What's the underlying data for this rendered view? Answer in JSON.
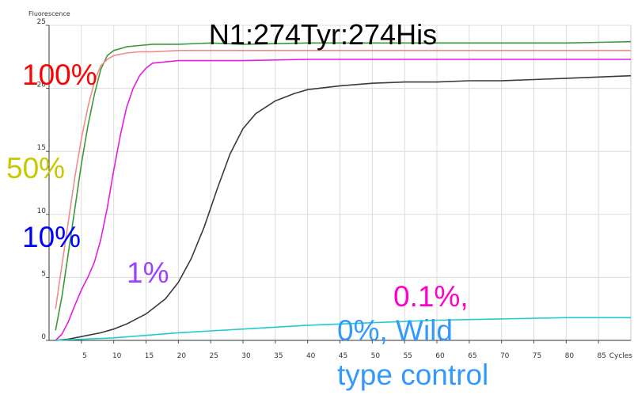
{
  "chart_data": {
    "type": "line",
    "title": "N1:274Tyr:274His",
    "ylabel": "Fluorescence",
    "xlabel": "Cycles",
    "xlim": [
      0,
      90
    ],
    "ylim": [
      0,
      25
    ],
    "x_ticks": [
      5,
      10,
      15,
      20,
      25,
      30,
      35,
      40,
      45,
      50,
      55,
      60,
      65,
      70,
      75,
      80,
      85
    ],
    "y_ticks": [
      0,
      5,
      10,
      15,
      20,
      25
    ],
    "grid": true,
    "series": [
      {
        "color": "#3a9a3a",
        "x": [
          1,
          2,
          3,
          4,
          5,
          6,
          7,
          8,
          9,
          10,
          12,
          14,
          16,
          20,
          25,
          30,
          40,
          50,
          60,
          70,
          80,
          90
        ],
        "y": [
          0.8,
          3.5,
          7.0,
          10.5,
          14.0,
          17.0,
          19.5,
          21.5,
          22.6,
          23.0,
          23.3,
          23.4,
          23.5,
          23.5,
          23.6,
          23.5,
          23.6,
          23.6,
          23.6,
          23.6,
          23.6,
          23.7
        ]
      },
      {
        "color": "#f08c8c",
        "x": [
          1,
          2,
          3,
          4,
          5,
          6,
          7,
          8,
          9,
          10,
          12,
          14,
          16,
          20,
          25,
          30,
          40,
          50,
          60,
          70,
          80,
          90
        ],
        "y": [
          2.5,
          6.0,
          9.5,
          13.0,
          16.0,
          18.5,
          20.5,
          21.8,
          22.3,
          22.6,
          22.8,
          22.9,
          22.9,
          23.0,
          23.0,
          23.0,
          23.0,
          23.0,
          23.0,
          23.0,
          23.0,
          23.0
        ]
      },
      {
        "color": "#e21ee2",
        "x": [
          1,
          2,
          3,
          4,
          5,
          6,
          7,
          8,
          9,
          10,
          11,
          12,
          13,
          14,
          15,
          16,
          18,
          20,
          25,
          30,
          40,
          50,
          60,
          70,
          80,
          90
        ],
        "y": [
          0.0,
          0.5,
          1.5,
          2.8,
          4.0,
          5.0,
          6.2,
          8.0,
          10.5,
          13.5,
          16.2,
          18.5,
          20.0,
          21.0,
          21.6,
          22.0,
          22.1,
          22.2,
          22.2,
          22.2,
          22.3,
          22.3,
          22.3,
          22.3,
          22.3,
          22.3
        ]
      },
      {
        "color": "#3a3a3a",
        "x": [
          1,
          3,
          5,
          8,
          10,
          12,
          15,
          18,
          20,
          22,
          24,
          26,
          28,
          30,
          32,
          35,
          38,
          40,
          45,
          50,
          55,
          60,
          65,
          70,
          75,
          80,
          85,
          90
        ],
        "y": [
          0.0,
          0.1,
          0.3,
          0.6,
          0.9,
          1.3,
          2.1,
          3.3,
          4.6,
          6.5,
          9.0,
          12.0,
          14.8,
          16.8,
          18.0,
          19.0,
          19.6,
          19.9,
          20.2,
          20.4,
          20.5,
          20.5,
          20.6,
          20.6,
          20.7,
          20.8,
          20.9,
          21.0
        ]
      },
      {
        "color": "#22cccc",
        "x": [
          1,
          10,
          20,
          30,
          40,
          50,
          60,
          70,
          80,
          90
        ],
        "y": [
          0.0,
          0.2,
          0.6,
          0.9,
          1.2,
          1.4,
          1.6,
          1.7,
          1.8,
          1.8
        ]
      }
    ],
    "annotations": [
      {
        "text": "100%",
        "color": "#ff0000"
      },
      {
        "text": "50%",
        "color": "#c8c800"
      },
      {
        "text": "10%",
        "color": "#0000ff"
      },
      {
        "text": "1%",
        "color": "#a040ff"
      },
      {
        "text": "0.1%,",
        "color": "#ff00cc"
      },
      {
        "text": "0%, Wild",
        "color": "#3399ff"
      },
      {
        "text": "type control",
        "color": "#3399ff"
      }
    ]
  }
}
